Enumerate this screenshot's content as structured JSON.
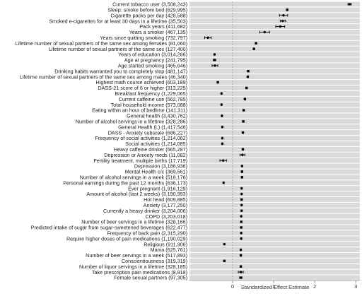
{
  "chart_data": {
    "type": "scatter",
    "title": "",
    "xlabel": "Standardized Effect Estimate",
    "ylabel": "",
    "xlim": [
      -1.05,
      3.1
    ],
    "xticks": [
      0,
      1,
      2,
      3
    ],
    "reference_line_x": 0,
    "grid": "horizontal bands",
    "point_color": "#000000",
    "band_color": "#d9d9d9",
    "refline_color": "#9a9a9a",
    "rows": [
      {
        "label": "Current tobacco user (3,508,243)",
        "estimate": 2.85,
        "ci": [
          2.81,
          2.89
        ]
      },
      {
        "label": "Sleep: smoke before bed (629,995)",
        "estimate": 1.33,
        "ci": [
          1.31,
          1.35
        ]
      },
      {
        "label": "Cigarette packs per day (428,588)",
        "estimate": 1.24,
        "ci": [
          1.14,
          1.34
        ]
      },
      {
        "label": "Smoked e-cigarettes for at least 30 days in a lifetime (35,503)",
        "estimate": 1.22,
        "ci": [
          1.16,
          1.29
        ]
      },
      {
        "label": "Pack years (411,682)",
        "estimate": 1.16,
        "ci": [
          1.05,
          1.27
        ]
      },
      {
        "label": "Years a smoker (467,135)",
        "estimate": 0.78,
        "ci": [
          0.66,
          0.9
        ]
      },
      {
        "label": "Years since quitting smoking (732,797)",
        "estimate": -0.6,
        "ci": [
          -0.68,
          -0.52
        ]
      },
      {
        "label": "Lifetime number of sexual partners of the same sex among females (81,060)",
        "estimate": 0.57,
        "ci": [
          0.55,
          0.59
        ]
      },
      {
        "label": "Lifetime number of sexual partners of the same sex (127,400)",
        "estimate": 0.52,
        "ci": [
          0.5,
          0.54
        ]
      },
      {
        "label": "Years of education (3,014,266)",
        "estimate": -0.44,
        "ci": [
          -0.45,
          -0.43
        ]
      },
      {
        "label": "Age at pregnancy (241,795)",
        "estimate": -0.44,
        "ci": [
          -0.47,
          -0.41
        ]
      },
      {
        "label": "Age started smoking (465,646)",
        "estimate": -0.43,
        "ci": [
          -0.5,
          -0.36
        ]
      },
      {
        "label": "Drinking habits warranted you to completely stop (481,147)",
        "estimate": 0.38,
        "ci": [
          0.36,
          0.4
        ]
      },
      {
        "label": "Lifetime number of sexual partners of the same sex among males (46,340)",
        "estimate": 0.37,
        "ci": [
          0.35,
          0.39
        ]
      },
      {
        "label": "Highest math course achieved (603,189)",
        "estimate": -0.36,
        "ci": [
          -0.38,
          -0.34
        ]
      },
      {
        "label": "DASS-21 score of 6 or higher (313,225)",
        "estimate": 0.34,
        "ci": [
          0.32,
          0.36
        ]
      },
      {
        "label": "Breakfast frequency (1,229,065)",
        "estimate": -0.27,
        "ci": [
          -0.28,
          -0.26
        ]
      },
      {
        "label": "Current caffeine use (562,785)",
        "estimate": 0.3,
        "ci": [
          0.28,
          0.32
        ]
      },
      {
        "label": "Total household income (573,088)",
        "estimate": -0.27,
        "ci": [
          -0.28,
          -0.26
        ]
      },
      {
        "label": "Eating within an hour of bedtime (141,311)",
        "estimate": 0.27,
        "ci": [
          0.25,
          0.29
        ]
      },
      {
        "label": "General health (3,430,762)",
        "estimate": -0.26,
        "ci": [
          -0.27,
          -0.25
        ]
      },
      {
        "label": "Number of alcohol servings in a lifetime (328,286)",
        "estimate": 0.26,
        "ci": [
          0.24,
          0.28
        ]
      },
      {
        "label": "General Health (L) (1,417,546)",
        "estimate": -0.25,
        "ci": [
          -0.26,
          -0.24
        ]
      },
      {
        "label": "DASS - Anxiety subscale (686,227)",
        "estimate": 0.25,
        "ci": [
          0.23,
          0.27
        ]
      },
      {
        "label": "Frequency of social activities (1,214,062)",
        "estimate": -0.25,
        "ci": [
          -0.26,
          -0.24
        ]
      },
      {
        "label": "Social activities (1,214,085)",
        "estimate": -0.25,
        "ci": [
          -0.26,
          -0.24
        ]
      },
      {
        "label": "Heavy caffeine drinker (565,287)",
        "estimate": 0.25,
        "ci": [
          0.23,
          0.27
        ]
      },
      {
        "label": "Depression or Anxiety meds (11,082)",
        "estimate": 0.24,
        "ci": [
          0.18,
          0.3
        ]
      },
      {
        "label": "Fertility treatment, multiple births (17,719)",
        "estimate": -0.23,
        "ci": [
          -0.31,
          -0.15
        ]
      },
      {
        "label": "Depression (3,186,936)",
        "estimate": 0.23,
        "ci": [
          0.22,
          0.24
        ]
      },
      {
        "label": "Mental Health c/c (369,561)",
        "estimate": 0.23,
        "ci": [
          0.21,
          0.25
        ]
      },
      {
        "label": "Number of alcohol servings in a week (518,176)",
        "estimate": 0.23,
        "ci": [
          0.21,
          0.25
        ]
      },
      {
        "label": "Personal earnings during the past 12 months (636,173)",
        "estimate": -0.22,
        "ci": [
          -0.23,
          -0.21
        ]
      },
      {
        "label": "Ever pregnant (1,916,129)",
        "estimate": 0.22,
        "ci": [
          0.21,
          0.23
        ]
      },
      {
        "label": "Amount of alcohol (last 2 weeks) (3,190,993)",
        "estimate": 0.22,
        "ci": [
          0.21,
          0.23
        ]
      },
      {
        "label": "Hot head (609,885)",
        "estimate": 0.22,
        "ci": [
          0.2,
          0.24
        ]
      },
      {
        "label": "Anxiety (3,177,250)",
        "estimate": 0.22,
        "ci": [
          0.21,
          0.23
        ]
      },
      {
        "label": "Currently a heavy drinker (3,204,006)",
        "estimate": 0.22,
        "ci": [
          0.21,
          0.23
        ]
      },
      {
        "label": "COPD (3,203,018)",
        "estimate": 0.21,
        "ci": [
          0.2,
          0.22
        ]
      },
      {
        "label": "Number of beer servings in a lifetime (328,166)",
        "estimate": 0.21,
        "ci": [
          0.19,
          0.23
        ]
      },
      {
        "label": "Predicted intake of sugar from sugar-sweetened beverages (622,477)",
        "estimate": 0.21,
        "ci": [
          0.19,
          0.23
        ]
      },
      {
        "label": "Frequency of back pain (2,315,290)",
        "estimate": 0.21,
        "ci": [
          0.2,
          0.22
        ]
      },
      {
        "label": "Require higher doses of pain medications (1,190,029)",
        "estimate": 0.21,
        "ci": [
          0.2,
          0.22
        ]
      },
      {
        "label": "Religious (911,906)",
        "estimate": -0.2,
        "ci": [
          -0.21,
          -0.19
        ]
      },
      {
        "label": "Mania (625,761)",
        "estimate": 0.2,
        "ci": [
          0.19,
          0.21
        ]
      },
      {
        "label": "Number of beer servings in a week (517,893)",
        "estimate": 0.2,
        "ci": [
          0.18,
          0.22
        ]
      },
      {
        "label": "Conscientiousness (319,319)",
        "estimate": -0.2,
        "ci": [
          -0.22,
          -0.18
        ]
      },
      {
        "label": "Number of liquor servings in a lifetime (328,185)",
        "estimate": 0.2,
        "ci": [
          0.18,
          0.22
        ]
      },
      {
        "label": "Take prescription pain medications (8,918)",
        "estimate": 0.2,
        "ci": [
          0.14,
          0.26
        ]
      },
      {
        "label": "Female sexual partners (97,305)",
        "estimate": 0.2,
        "ci": [
          0.17,
          0.23
        ]
      }
    ]
  }
}
